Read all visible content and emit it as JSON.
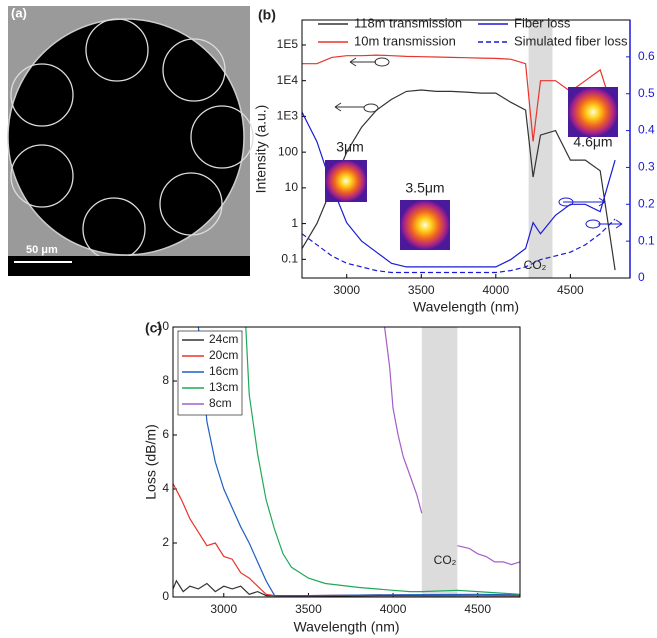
{
  "chart_data": [
    {
      "type": "image",
      "label": "(a)",
      "scale_bar_label": "50 μm"
    },
    {
      "type": "line",
      "label": "(b)",
      "x_label": "Wavelength (nm)",
      "y_label": "Intensity (a.u.)",
      "ylog": true,
      "xlim": [
        2700,
        4900
      ],
      "xticks": [
        3000,
        3500,
        4000,
        4500
      ],
      "ylim": [
        0.03,
        500000
      ],
      "yticks": [
        0.1,
        1,
        10,
        100,
        {
          "value": 1000,
          "label": "1E3"
        },
        {
          "value": 10000,
          "label": "1E4"
        },
        {
          "value": 100000,
          "label": "1E5"
        }
      ],
      "y2lim": [
        0,
        0.7
      ],
      "y2ticks": [
        0,
        0.1,
        0.2,
        0.3,
        0.4,
        0.5,
        0.6
      ],
      "y2_color": "#1a1ad6",
      "x": [
        2700,
        2800,
        2900,
        3000,
        3100,
        3200,
        3300,
        3400,
        3500,
        3600,
        3700,
        3800,
        3900,
        4000,
        4100,
        4200,
        4250,
        4300,
        4400,
        4500,
        4600,
        4700,
        4800
      ],
      "series": [
        {
          "name": "118m transmission",
          "color": "#333333",
          "values": [
            0.2,
            1,
            10,
            100,
            500,
            1500,
            3000,
            5000,
            5500,
            5000,
            5000,
            4800,
            4500,
            4500,
            2500,
            1500,
            20,
            300,
            400,
            60,
            60,
            30,
            0.05
          ]
        },
        {
          "name": "10m transmission",
          "color": "#e8342c",
          "values": [
            30000,
            30000,
            45000,
            50000,
            50000,
            52000,
            50000,
            48000,
            47000,
            46000,
            45000,
            44000,
            43000,
            42000,
            40000,
            30000,
            200,
            10000,
            10000,
            5000,
            10000,
            20000,
            1000
          ]
        },
        {
          "name": "Fiber loss",
          "color": "#1a1ad6",
          "axis": "y2",
          "values": [
            0.45,
            0.37,
            0.25,
            0.15,
            0.1,
            0.07,
            0.04,
            0.03,
            0.03,
            0.03,
            0.03,
            0.03,
            0.03,
            0.03,
            0.05,
            0.08,
            0.15,
            0.12,
            0.17,
            0.2,
            0.2,
            0.18,
            0.32
          ]
        },
        {
          "name": "Simulated fiber loss",
          "color": "#1a1ad6",
          "axis": "y2",
          "line_style": "dashed",
          "values": [
            0.12,
            0.09,
            0.06,
            0.04,
            0.03,
            0.02,
            0.015,
            0.015,
            0.015,
            0.015,
            0.015,
            0.015,
            0.015,
            0.015,
            0.02,
            0.03,
            0.04,
            0.05,
            0.06,
            0.07,
            0.09,
            0.12,
            0.16
          ]
        }
      ],
      "shaded_region": [
        4220,
        4380
      ],
      "annotations": [
        "CO₂",
        "3μm",
        "3.5μm",
        "4.6μm"
      ]
    },
    {
      "type": "line",
      "label": "(c)",
      "x_label": "Wavelength (nm)",
      "y_label": "Loss (dB/m)",
      "xlim": [
        2700,
        4750
      ],
      "xticks": [
        3000,
        3500,
        4000,
        4500
      ],
      "ylim": [
        0,
        10
      ],
      "yticks": [
        0,
        2,
        4,
        6,
        8,
        10
      ],
      "series": [
        {
          "name": "24cm",
          "color": "#333333",
          "x": [
            2700,
            2720,
            2760,
            2800,
            2850,
            2900,
            2950,
            3000,
            3050,
            3100,
            3150,
            3200,
            3250,
            3300,
            3500,
            4000,
            4500,
            4750
          ],
          "values": [
            0.3,
            0.6,
            0.2,
            0.4,
            0.3,
            0.5,
            0.2,
            0.4,
            0.3,
            0.4,
            0.1,
            0.2,
            0.05,
            0.05,
            0.03,
            0.05,
            0.05,
            0.05
          ]
        },
        {
          "name": "20cm",
          "color": "#e8342c",
          "x": [
            2700,
            2750,
            2800,
            2850,
            2900,
            2950,
            3000,
            3050,
            3100,
            3150,
            3200,
            3250,
            3300,
            3500,
            4000,
            4500,
            4750
          ],
          "values": [
            4.2,
            3.6,
            2.9,
            2.4,
            1.9,
            2.0,
            1.5,
            1.4,
            0.9,
            0.7,
            0.4,
            0.1,
            0.05,
            0.05,
            0.08,
            0.06,
            0.05
          ]
        },
        {
          "name": "16cm",
          "color": "#1f5fc4",
          "x": [
            2850,
            2900,
            2950,
            3000,
            3050,
            3100,
            3150,
            3200,
            3250,
            3300,
            3500,
            4000,
            4500,
            4750
          ],
          "values": [
            10,
            6.5,
            5,
            4,
            3.3,
            2.6,
            2,
            1.3,
            0.6,
            0.05,
            0.05,
            0.08,
            0.1,
            0.08
          ]
        },
        {
          "name": "13cm",
          "color": "#1fa85a",
          "x": [
            3130,
            3150,
            3200,
            3250,
            3300,
            3350,
            3400,
            3500,
            3600,
            3800,
            4000,
            4100,
            4170,
            4380,
            4500,
            4750
          ],
          "values": [
            10,
            7.5,
            5.3,
            3.6,
            2.5,
            1.6,
            1.1,
            0.7,
            0.5,
            0.35,
            0.25,
            0.2,
            0.2,
            0.25,
            0.2,
            0.1
          ]
        },
        {
          "name": "8cm",
          "color": "#a45ec8",
          "x": [
            3950,
            3980,
            4000,
            4030,
            4060,
            4100,
            4140,
            4170,
            4250,
            4380,
            4450,
            4500,
            4550,
            4600,
            4650,
            4700,
            4750
          ],
          "values": [
            10,
            8.5,
            7,
            6,
            5.2,
            4.5,
            3.8,
            3.1,
            null,
            1.9,
            1.8,
            1.6,
            1.5,
            1.3,
            1.3,
            1.2,
            1.3
          ]
        }
      ],
      "shaded_region": [
        4170,
        4380
      ],
      "annotations": [
        "CO₂"
      ]
    }
  ]
}
